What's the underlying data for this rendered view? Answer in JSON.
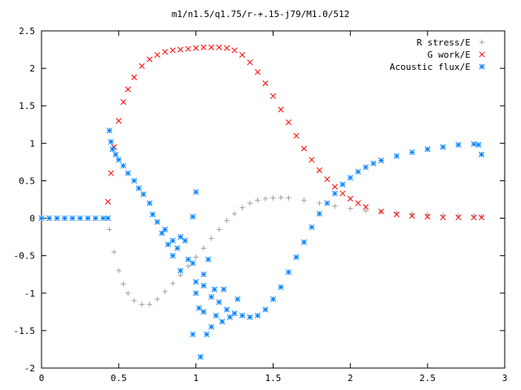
{
  "chart_data": {
    "type": "scatter",
    "title": "m1/n1.5/q1.75/r-+.15-j79/M1.0/512",
    "xlabel": "",
    "ylabel": "",
    "xlim": [
      0,
      3
    ],
    "ylim": [
      -2,
      2.5
    ],
    "x_ticks": [
      0,
      0.5,
      1,
      1.5,
      2,
      2.5,
      3
    ],
    "y_ticks": [
      -2,
      -1.5,
      -1,
      -0.5,
      0,
      0.5,
      1,
      1.5,
      2,
      2.5
    ],
    "x_tick_labels": [
      "0",
      "0.5",
      "1",
      "1.5",
      "2",
      "2.5",
      "3"
    ],
    "y_tick_labels": [
      "-2",
      "-1.5",
      "-1",
      "-0.5",
      "0",
      "0.5",
      "1",
      "1.5",
      "2",
      "2.5"
    ],
    "grid": false,
    "legend_position": "top-right",
    "series": [
      {
        "name": "R stress/E",
        "marker": "plus",
        "color": "#a0a0a0",
        "points": [
          [
            0.44,
            -0.15
          ],
          [
            0.47,
            -0.45
          ],
          [
            0.5,
            -0.7
          ],
          [
            0.53,
            -0.88
          ],
          [
            0.56,
            -1.0
          ],
          [
            0.6,
            -1.1
          ],
          [
            0.65,
            -1.15
          ],
          [
            0.7,
            -1.15
          ],
          [
            0.75,
            -1.08
          ],
          [
            0.8,
            -0.98
          ],
          [
            0.85,
            -0.87
          ],
          [
            0.9,
            -0.76
          ],
          [
            0.95,
            -0.64
          ],
          [
            1.0,
            -0.52
          ],
          [
            1.05,
            -0.4
          ],
          [
            1.1,
            -0.27
          ],
          [
            1.15,
            -0.15
          ],
          [
            1.2,
            -0.03
          ],
          [
            1.25,
            0.06
          ],
          [
            1.3,
            0.14
          ],
          [
            1.35,
            0.2
          ],
          [
            1.4,
            0.24
          ],
          [
            1.45,
            0.26
          ],
          [
            1.5,
            0.27
          ],
          [
            1.55,
            0.275
          ],
          [
            1.6,
            0.27
          ],
          [
            1.7,
            0.24
          ],
          [
            1.8,
            0.2
          ],
          [
            1.9,
            0.16
          ],
          [
            2.0,
            0.13
          ],
          [
            2.1,
            0.1
          ],
          [
            2.2,
            0.085
          ],
          [
            2.3,
            0.07
          ],
          [
            2.4,
            0.06
          ],
          [
            2.5,
            0.05
          ],
          [
            2.6,
            0.04
          ],
          [
            2.7,
            0.035
          ],
          [
            2.8,
            0.03
          ],
          [
            2.85,
            0.025
          ]
        ]
      },
      {
        "name": "G work/E",
        "marker": "cross",
        "color": "#ff0000",
        "points": [
          [
            0.43,
            0.22
          ],
          [
            0.45,
            0.6
          ],
          [
            0.47,
            0.95
          ],
          [
            0.5,
            1.3
          ],
          [
            0.53,
            1.55
          ],
          [
            0.56,
            1.72
          ],
          [
            0.6,
            1.88
          ],
          [
            0.65,
            2.03
          ],
          [
            0.7,
            2.12
          ],
          [
            0.75,
            2.18
          ],
          [
            0.8,
            2.22
          ],
          [
            0.85,
            2.24
          ],
          [
            0.9,
            2.25
          ],
          [
            0.95,
            2.26
          ],
          [
            1.0,
            2.27
          ],
          [
            1.05,
            2.28
          ],
          [
            1.1,
            2.28
          ],
          [
            1.15,
            2.28
          ],
          [
            1.2,
            2.27
          ],
          [
            1.25,
            2.24
          ],
          [
            1.3,
            2.18
          ],
          [
            1.35,
            2.08
          ],
          [
            1.4,
            1.95
          ],
          [
            1.45,
            1.8
          ],
          [
            1.5,
            1.63
          ],
          [
            1.55,
            1.45
          ],
          [
            1.6,
            1.28
          ],
          [
            1.65,
            1.1
          ],
          [
            1.7,
            0.93
          ],
          [
            1.75,
            0.78
          ],
          [
            1.8,
            0.64
          ],
          [
            1.85,
            0.52
          ],
          [
            1.9,
            0.42
          ],
          [
            1.95,
            0.33
          ],
          [
            2.0,
            0.26
          ],
          [
            2.05,
            0.2
          ],
          [
            2.1,
            0.15
          ],
          [
            2.2,
            0.09
          ],
          [
            2.3,
            0.05
          ],
          [
            2.4,
            0.03
          ],
          [
            2.5,
            0.02
          ],
          [
            2.6,
            0.01
          ],
          [
            2.7,
            0.01
          ],
          [
            2.8,
            0.01
          ],
          [
            2.85,
            0.01
          ]
        ]
      },
      {
        "name": "Acoustic flux/E",
        "marker": "star",
        "color": "#0080ff",
        "points": [
          [
            0.0,
            0.0
          ],
          [
            0.05,
            0.0
          ],
          [
            0.1,
            0.0
          ],
          [
            0.15,
            0.0
          ],
          [
            0.2,
            0.0
          ],
          [
            0.25,
            0.0
          ],
          [
            0.3,
            0.0
          ],
          [
            0.35,
            0.0
          ],
          [
            0.4,
            0.0
          ],
          [
            0.43,
            0.0
          ],
          [
            0.44,
            1.17
          ],
          [
            0.45,
            1.02
          ],
          [
            0.46,
            0.92
          ],
          [
            0.48,
            0.85
          ],
          [
            0.5,
            0.78
          ],
          [
            0.53,
            0.7
          ],
          [
            0.56,
            0.6
          ],
          [
            0.6,
            0.5
          ],
          [
            0.63,
            0.4
          ],
          [
            0.66,
            0.32
          ],
          [
            0.7,
            0.2
          ],
          [
            0.72,
            0.05
          ],
          [
            0.75,
            -0.05
          ],
          [
            0.78,
            -0.2
          ],
          [
            0.8,
            -0.15
          ],
          [
            0.82,
            -0.35
          ],
          [
            0.85,
            -0.3
          ],
          [
            0.85,
            -0.5
          ],
          [
            0.88,
            -0.4
          ],
          [
            0.9,
            -0.7
          ],
          [
            0.93,
            -0.3
          ],
          [
            0.95,
            -0.55
          ],
          [
            0.98,
            -0.6
          ],
          [
            1.0,
            -0.85
          ],
          [
            1.0,
            -1.0
          ],
          [
            1.02,
            -1.2
          ],
          [
            1.03,
            -1.85
          ],
          [
            1.05,
            -1.25
          ],
          [
            1.05,
            -0.9
          ],
          [
            1.07,
            -1.55
          ],
          [
            1.08,
            -0.55
          ],
          [
            1.1,
            -1.45
          ],
          [
            1.1,
            -1.05
          ],
          [
            1.12,
            -0.95
          ],
          [
            1.13,
            -1.3
          ],
          [
            1.15,
            -1.12
          ],
          [
            1.17,
            -1.38
          ],
          [
            1.18,
            -0.95
          ],
          [
            1.2,
            -1.22
          ],
          [
            1.22,
            -1.32
          ],
          [
            1.25,
            -1.27
          ],
          [
            1.27,
            -1.08
          ],
          [
            1.3,
            -1.3
          ],
          [
            1.35,
            -1.32
          ],
          [
            1.4,
            -1.3
          ],
          [
            1.45,
            -1.22
          ],
          [
            1.5,
            -1.08
          ],
          [
            1.55,
            -0.92
          ],
          [
            1.6,
            -0.72
          ],
          [
            1.65,
            -0.52
          ],
          [
            1.7,
            -0.32
          ],
          [
            1.75,
            -0.12
          ],
          [
            1.8,
            0.06
          ],
          [
            1.85,
            0.2
          ],
          [
            1.9,
            0.33
          ],
          [
            1.95,
            0.45
          ],
          [
            2.0,
            0.54
          ],
          [
            2.05,
            0.62
          ],
          [
            2.1,
            0.68
          ],
          [
            2.15,
            0.73
          ],
          [
            2.2,
            0.77
          ],
          [
            2.3,
            0.83
          ],
          [
            2.4,
            0.88
          ],
          [
            2.5,
            0.92
          ],
          [
            2.6,
            0.95
          ],
          [
            2.7,
            0.98
          ],
          [
            2.8,
            0.99
          ],
          [
            2.83,
            0.98
          ],
          [
            2.85,
            0.85
          ],
          [
            1.0,
            0.35
          ],
          [
            0.98,
            0.02
          ],
          [
            0.9,
            -0.25
          ],
          [
            1.05,
            -0.75
          ],
          [
            0.98,
            -1.55
          ]
        ]
      }
    ]
  }
}
